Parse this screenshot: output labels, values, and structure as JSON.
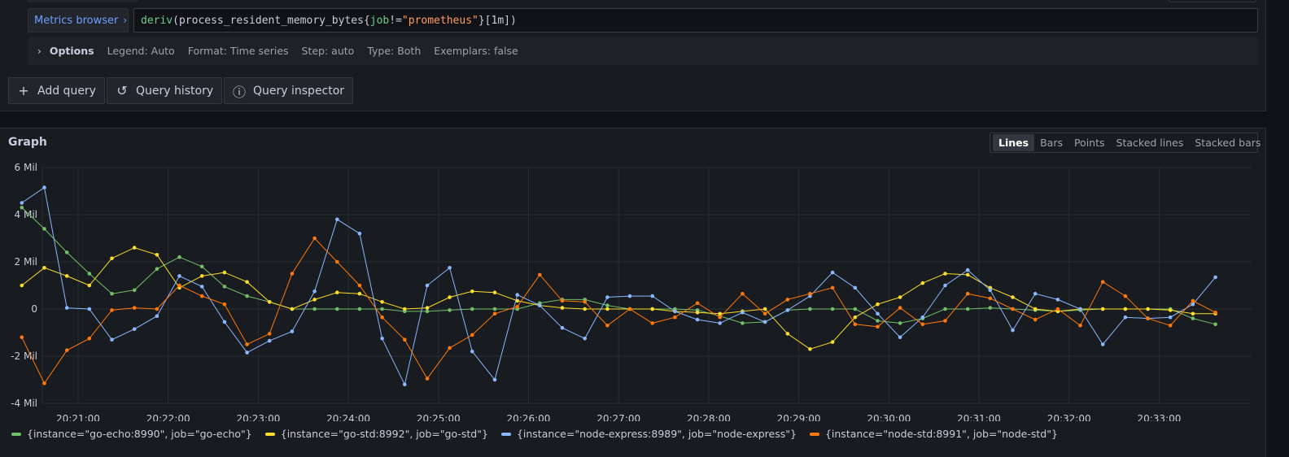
{
  "query": {
    "metrics_browser_label": "Metrics browser",
    "metrics_browser_chevron": "›",
    "expr": {
      "fn": "deriv",
      "open": "(",
      "metric": "process_resident_memory_bytes",
      "brace_open": "{",
      "label": "job",
      "op": "!=",
      "value": "\"prometheus\"",
      "brace_close": "}",
      "range": "[1m]",
      "close": ")"
    }
  },
  "options": {
    "chevron": "›",
    "title": "Options",
    "legend": "Legend: Auto",
    "format": "Format: Time series",
    "step": "Step: auto",
    "type": "Type: Both",
    "exemplars": "Exemplars: false"
  },
  "buttons": {
    "add_query": "Add query",
    "add_query_icon": "+",
    "query_history": "Query history",
    "query_history_icon": "↺",
    "query_inspector": "Query inspector",
    "query_inspector_icon": "ⓘ"
  },
  "graph": {
    "title": "Graph",
    "modes": [
      "Lines",
      "Bars",
      "Points",
      "Stacked lines",
      "Stacked bars"
    ],
    "active_mode": "Lines"
  },
  "chart_data": {
    "type": "line",
    "y_ticks": [
      "6 Mil",
      "4 Mil",
      "2 Mil",
      "0",
      "-2 Mil",
      "-4 Mil"
    ],
    "ylim": [
      -4,
      6
    ],
    "x_ticks": [
      "20:21:00",
      "20:22:00",
      "20:23:00",
      "20:24:00",
      "20:25:00",
      "20:26:00",
      "20:27:00",
      "20:28:00",
      "20:29:00",
      "20:30:00",
      "20:31:00",
      "20:32:00",
      "20:33:00"
    ],
    "x_start_min": 20.375,
    "x_step_min": 0.25,
    "grid": true,
    "legend_position": "bottom",
    "series": [
      {
        "name": "{instance=\"go-echo:8990\", job=\"go-echo\"}",
        "color": "#73bf69",
        "values": [
          4.3,
          3.4,
          2.4,
          1.5,
          0.65,
          0.8,
          1.7,
          2.2,
          1.8,
          0.95,
          0.55,
          0.3,
          0.0,
          0.0,
          0.0,
          0.0,
          0.0,
          -0.1,
          -0.1,
          -0.05,
          0.0,
          0.0,
          0.0,
          0.25,
          0.4,
          0.4,
          0.15,
          0.0,
          0.0,
          0.0,
          -0.05,
          -0.3,
          -0.6,
          -0.55,
          -0.05,
          0.0,
          0.0,
          0.0,
          -0.5,
          -0.6,
          -0.4,
          0.0,
          0.0,
          0.05,
          0.0,
          -0.05,
          -0.1,
          -0.05,
          0.0,
          0.0,
          0.0,
          0.0,
          -0.4,
          -0.65
        ]
      },
      {
        "name": "{instance=\"go-std:8992\", job=\"go-std\"}",
        "color": "#fade2a",
        "values": [
          1.0,
          1.75,
          1.4,
          1.0,
          2.15,
          2.6,
          2.3,
          0.9,
          1.4,
          1.55,
          1.15,
          0.3,
          0.0,
          0.4,
          0.7,
          0.65,
          0.3,
          0.0,
          0.05,
          0.5,
          0.75,
          0.7,
          0.35,
          0.15,
          0.05,
          0.0,
          0.0,
          0.0,
          0.0,
          -0.1,
          -0.15,
          -0.2,
          -0.1,
          0.0,
          -1.05,
          -1.7,
          -1.4,
          -0.35,
          0.2,
          0.5,
          1.1,
          1.5,
          1.45,
          0.9,
          0.5,
          0.0,
          -0.1,
          0.0,
          0.0,
          0.0,
          0.0,
          -0.05,
          -0.2,
          -0.2
        ]
      },
      {
        "name": "{instance=\"node-express:8989\", job=\"node-express\"}",
        "color": "#8ab8ff",
        "values": [
          4.5,
          5.15,
          0.05,
          0.0,
          -1.3,
          -0.85,
          -0.3,
          1.4,
          0.95,
          -0.55,
          -1.85,
          -1.35,
          -0.95,
          0.75,
          3.8,
          3.2,
          -1.25,
          -3.2,
          1.0,
          1.75,
          -1.8,
          -3.0,
          0.6,
          0.15,
          -0.8,
          -1.25,
          0.5,
          0.55,
          0.55,
          -0.1,
          -0.45,
          -0.6,
          -0.15,
          -0.55,
          -0.05,
          0.55,
          1.55,
          0.9,
          -0.2,
          -1.2,
          -0.35,
          1.0,
          1.65,
          0.8,
          -0.9,
          0.65,
          0.4,
          0.0,
          -1.5,
          -0.35,
          -0.4,
          -0.35,
          0.2,
          1.35
        ]
      },
      {
        "name": "{instance=\"node-std:8991\", job=\"node-std\"}",
        "color": "#ff780a",
        "values": [
          -1.2,
          -3.15,
          -1.75,
          -1.25,
          -0.05,
          0.05,
          0.0,
          1.0,
          0.55,
          0.2,
          -1.5,
          -1.05,
          1.5,
          3.0,
          2.0,
          1.0,
          -0.35,
          -1.3,
          -2.95,
          -1.65,
          -1.1,
          -0.2,
          0.1,
          1.45,
          0.35,
          0.3,
          -0.7,
          0.0,
          -0.6,
          -0.35,
          0.25,
          -0.35,
          0.65,
          -0.2,
          0.4,
          0.65,
          0.9,
          -0.65,
          -0.75,
          0.05,
          -0.65,
          -0.5,
          0.65,
          0.45,
          0.0,
          -0.45,
          0.0,
          -0.7,
          1.15,
          0.55,
          -0.4,
          -0.7,
          0.35,
          -0.15
        ]
      }
    ]
  }
}
